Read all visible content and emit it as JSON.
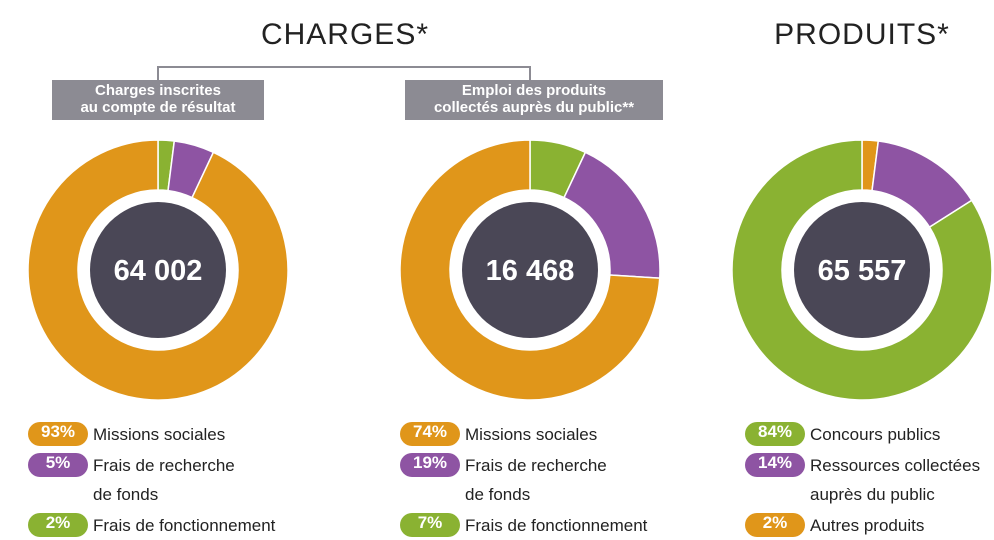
{
  "headings": [
    "CHARGES*",
    "PRODUITS*"
  ],
  "chart_data": [
    {
      "type": "pie",
      "title": "Charges inscrites\nau compte de résultat",
      "center_label": "64 002",
      "categories": [
        "Missions sociales",
        "Frais de recherche\nde fonds",
        "Frais de fonctionnement"
      ],
      "values": [
        93,
        5,
        2
      ],
      "value_labels": [
        "93%",
        "5%",
        "2%"
      ],
      "colors": [
        "#e0961a",
        "#8e54a3",
        "#8ab232"
      ]
    },
    {
      "type": "pie",
      "title": "Emploi des produits\ncollectés auprès du public**",
      "center_label": "16 468",
      "categories": [
        "Missions sociales",
        "Frais de recherche\nde fonds",
        "Frais de fonctionnement"
      ],
      "values": [
        74,
        19,
        7
      ],
      "value_labels": [
        "74%",
        "19%",
        "7%"
      ],
      "colors": [
        "#e0961a",
        "#8e54a3",
        "#8ab232"
      ]
    },
    {
      "type": "pie",
      "center_label": "65 557",
      "categories": [
        "Concours publics",
        "Ressources collectées\nauprès du public",
        "Autres produits"
      ],
      "values": [
        84,
        14,
        2
      ],
      "value_labels": [
        "84%",
        "14%",
        "2%"
      ],
      "colors": [
        "#8ab232",
        "#8e54a3",
        "#e0961a"
      ]
    }
  ]
}
